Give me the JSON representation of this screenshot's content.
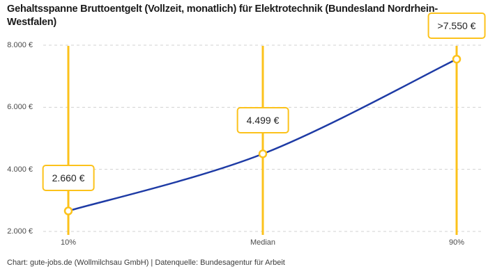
{
  "title": "Gehaltsspanne Bruttoentgelt (Vollzeit, monatlich) für Elektrotechnik (Bundesland Nordrhein-Westfalen)",
  "footer": "Chart: gute-jobs.de (Wollmilchsau GmbH) | Datenquelle: Bundesagentur für Arbeit",
  "colors": {
    "accent_yellow": "#fcc21b",
    "line_blue": "#1e3ba5",
    "grid": "#d0d0d0",
    "text_dark": "#1a1a1a",
    "text_muted": "#4a4a4a",
    "marker_fill": "#ffffff"
  },
  "chart_data": {
    "type": "line",
    "title": "Gehaltsspanne Bruttoentgelt (Vollzeit, monatlich) für Elektrotechnik (Bundesland Nordrhein-Westfalen)",
    "categories": [
      "10%",
      "Median",
      "90%"
    ],
    "values": [
      2660,
      4499,
      7550
    ],
    "points": [
      {
        "label": "10%",
        "value": 2660,
        "display": "2.660 €",
        "open_ended": false
      },
      {
        "label": "Median",
        "value": 4499,
        "display": "4.499 €",
        "open_ended": false
      },
      {
        "label": "90%",
        "value": 7550,
        "display": ">7.550 €",
        "open_ended": true
      }
    ],
    "yticks": [
      {
        "value": 2000,
        "label": "2.000 €"
      },
      {
        "value": 4000,
        "label": "4.000 €"
      },
      {
        "value": 6000,
        "label": "6.000 €"
      },
      {
        "value": 8000,
        "label": "8.000 €"
      }
    ],
    "ylim": [
      2000,
      8000
    ],
    "xlabel": "",
    "ylabel": "",
    "grid": "horizontal-dashed",
    "legend": "none",
    "currency": "€"
  }
}
